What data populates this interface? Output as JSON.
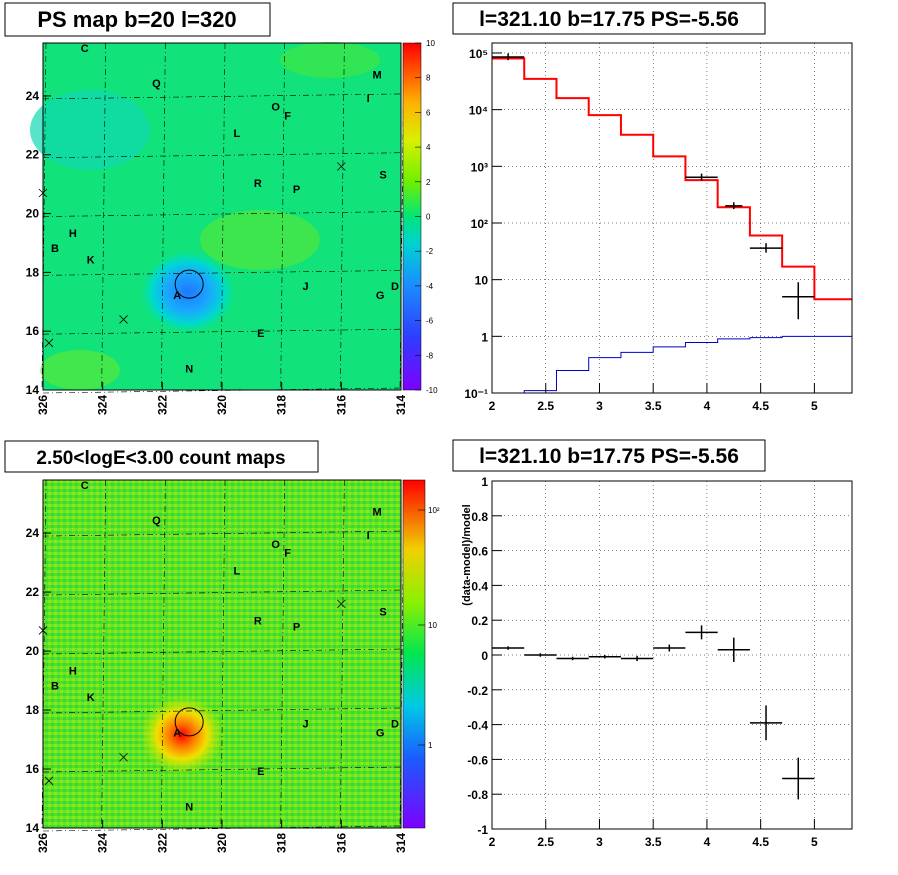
{
  "panels": {
    "tl_title": "PS map b=20 l=320",
    "tr_title": "l=321.10 b=17.75 PS=-5.56",
    "bl_title": "2.50<logE<3.00 count maps",
    "br_title": "l=321.10 b=17.75 PS=-5.56",
    "br_ylabel": "(data-model)/model"
  },
  "maps": {
    "l_range": [
      326,
      314
    ],
    "b_range": [
      14,
      25.8
    ],
    "x_ticks": [
      "326",
      "324",
      "322",
      "320",
      "318",
      "316",
      "314"
    ],
    "y_ticks": [
      "14",
      "16",
      "18",
      "20",
      "22",
      "24"
    ],
    "sources": [
      {
        "label": "C",
        "l": 324.6,
        "b": 25.5
      },
      {
        "label": "Q",
        "l": 322.2,
        "b": 24.3
      },
      {
        "label": "M",
        "l": 314.8,
        "b": 24.6
      },
      {
        "label": "I",
        "l": 315.1,
        "b": 23.8
      },
      {
        "label": "O",
        "l": 318.2,
        "b": 23.5
      },
      {
        "label": "F",
        "l": 317.8,
        "b": 23.2
      },
      {
        "label": "L",
        "l": 319.5,
        "b": 22.6
      },
      {
        "label": "S",
        "l": 314.6,
        "b": 21.2
      },
      {
        "label": "R",
        "l": 318.8,
        "b": 20.9
      },
      {
        "label": "P",
        "l": 317.5,
        "b": 20.7
      },
      {
        "label": "H",
        "l": 325.0,
        "b": 19.2
      },
      {
        "label": "B",
        "l": 325.6,
        "b": 18.7
      },
      {
        "label": "K",
        "l": 324.4,
        "b": 18.3
      },
      {
        "label": "J",
        "l": 317.2,
        "b": 17.4
      },
      {
        "label": "D",
        "l": 314.2,
        "b": 17.4
      },
      {
        "label": "G",
        "l": 314.7,
        "b": 17.1
      },
      {
        "label": "A",
        "l": 321.5,
        "b": 17.1
      },
      {
        "label": "E",
        "l": 318.7,
        "b": 15.8
      },
      {
        "label": "N",
        "l": 321.1,
        "b": 14.6
      }
    ],
    "crosses": [
      {
        "l": 326.0,
        "b": 20.7
      },
      {
        "l": 316.0,
        "b": 21.6
      },
      {
        "l": 323.3,
        "b": 16.4
      },
      {
        "l": 325.8,
        "b": 15.6
      }
    ],
    "circle": {
      "l": 321.1,
      "b": 17.6
    },
    "ps_colorbar": {
      "range": [
        -10,
        10
      ],
      "ticks": [
        "10",
        "8",
        "6",
        "4",
        "2",
        "0",
        "-2",
        "-4",
        "-6",
        "-8",
        "-10"
      ]
    },
    "count_colorbar": {
      "ticks": [
        "10²",
        "10",
        "1"
      ]
    }
  },
  "chart_data": [
    {
      "type": "heatmap",
      "title": "PS map b=20 l=320",
      "xlabel": "",
      "ylabel": "",
      "xlim": [
        326,
        314
      ],
      "ylim": [
        14,
        25.8
      ],
      "zlim": [
        -10,
        10
      ],
      "note_values": "smooth PS field ~0 with a negative dip at (321.1, 17.6)"
    },
    {
      "type": "line",
      "title": "l=321.10 b=17.75 PS=-5.56",
      "xlim": [
        2,
        5.35
      ],
      "ylim": [
        0.1,
        150000
      ],
      "ylog": true,
      "grid": true,
      "x_ticks": [
        "2",
        "2.5",
        "3",
        "3.5",
        "4",
        "4.5",
        "5"
      ],
      "y_ticks": [
        "10⁻¹",
        "1",
        "10",
        "10²",
        "10³",
        "10⁴",
        "10⁵"
      ],
      "series": [
        {
          "name": "",
          "color": "#ff0000",
          "style": "step",
          "edges": [
            2.0,
            2.3,
            2.6,
            2.9,
            3.2,
            3.5,
            3.8,
            4.1,
            4.4,
            4.7,
            5.0,
            5.35
          ],
          "values": [
            80000,
            35000,
            16000,
            8000,
            3600,
            1500,
            570,
            190,
            60,
            17,
            4.5
          ]
        },
        {
          "name": "",
          "color": "#0000cc",
          "style": "step",
          "edges": [
            2.0,
            2.3,
            2.6,
            2.9,
            3.2,
            3.5,
            3.8,
            4.1,
            4.4,
            4.7,
            5.0,
            5.35
          ],
          "values": [
            0.1,
            0.11,
            0.25,
            0.42,
            0.52,
            0.65,
            0.78,
            0.9,
            0.95,
            1.0,
            1.0
          ]
        },
        {
          "name": "",
          "color": "#000000",
          "style": "points",
          "x": [
            2.15,
            3.95,
            4.25,
            4.55,
            4.85
          ],
          "y": [
            85000,
            640,
            200,
            36,
            5
          ],
          "xerr": [
            0.15,
            0.15,
            0.08,
            0.15,
            0.15
          ],
          "yerr": [
            0,
            0,
            0,
            4,
            2
          ]
        }
      ]
    },
    {
      "type": "heatmap",
      "title": "2.50<logE<3.00 count maps",
      "xlim": [
        326,
        314
      ],
      "ylim": [
        14,
        25.8
      ],
      "zlog": true,
      "note_values": "counts ~4 across field with a bright peak ~150 at (321.4, 17.3)"
    },
    {
      "type": "scatter",
      "title": "l=321.10 b=17.75 PS=-5.56",
      "ylabel": "(data-model)/model",
      "xlim": [
        2,
        5.35
      ],
      "ylim": [
        -1,
        1
      ],
      "grid": true,
      "x_ticks": [
        "2",
        "2.5",
        "3",
        "3.5",
        "4",
        "4.5",
        "5"
      ],
      "y_ticks": [
        "1",
        "0.8",
        "0.6",
        "0.4",
        "0.2",
        "0",
        "-0.2",
        "-0.4",
        "-0.6",
        "-0.8",
        "-1"
      ],
      "x": [
        2.15,
        2.45,
        2.75,
        3.05,
        3.35,
        3.65,
        3.95,
        4.25,
        4.55,
        4.85
      ],
      "y": [
        0.04,
        0.0,
        -0.02,
        -0.01,
        -0.02,
        0.04,
        0.13,
        0.03,
        -0.39,
        -0.71
      ],
      "xerr": [
        0.15,
        0.15,
        0.15,
        0.15,
        0.15,
        0.15,
        0.15,
        0.15,
        0.15,
        0.15
      ],
      "yerr": [
        0.01,
        0.01,
        0.01,
        0.01,
        0.015,
        0.02,
        0.04,
        0.07,
        0.1,
        0.12
      ]
    }
  ]
}
